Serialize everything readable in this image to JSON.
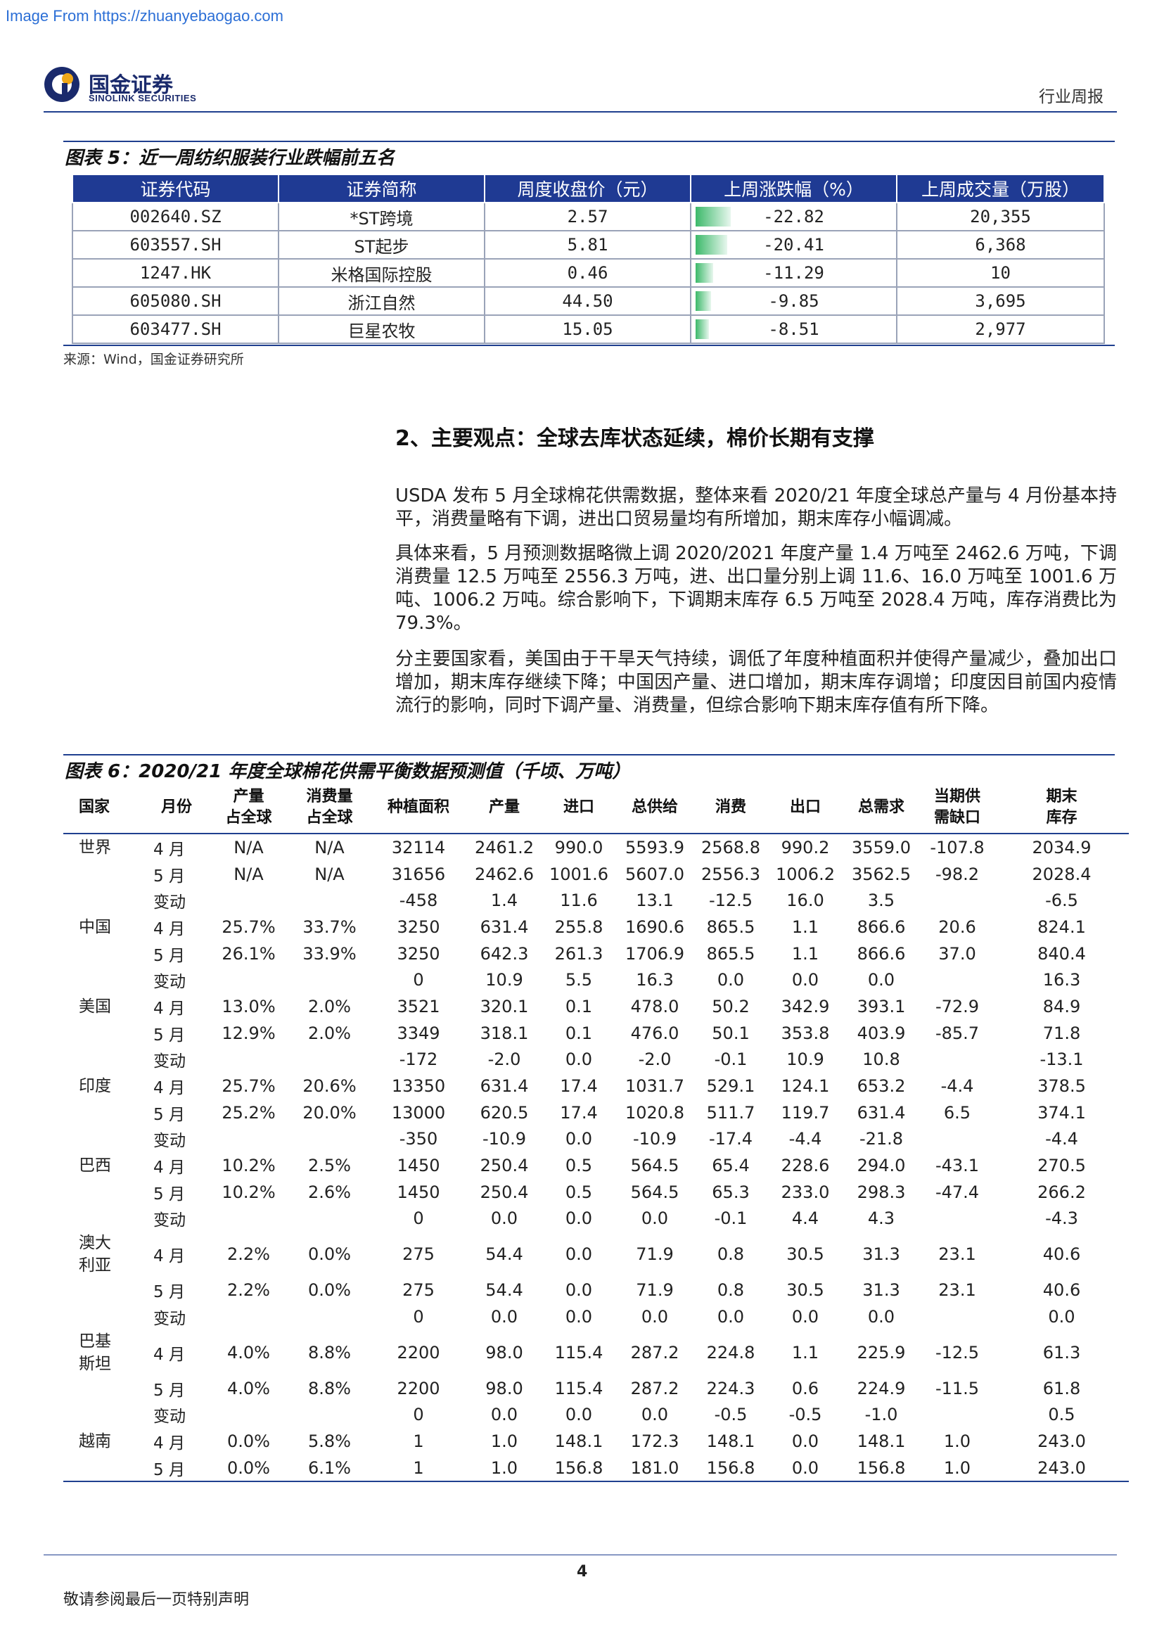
{
  "watermark": "Image From https://zhuanyebaogao.com",
  "logo": {
    "cn": "国金证券",
    "en": "SINOLINK SECURITIES"
  },
  "header_label": "行业周报",
  "figure5": {
    "title": "图表 5：近一周纺织服装行业跌幅前五名",
    "columns": [
      "证券代码",
      "证券简称",
      "周度收盘价（元）",
      "上周涨跌幅（%）",
      "上周成交量（万股）"
    ],
    "rows": [
      {
        "code": "002640.SZ",
        "name": "*ST跨境",
        "close": "2.57",
        "change": "-22.82",
        "change_value": -22.82,
        "volume": "20,355"
      },
      {
        "code": "603557.SH",
        "name": "ST起步",
        "close": "5.81",
        "change": "-20.41",
        "change_value": -20.41,
        "volume": "6,368"
      },
      {
        "code": "1247.HK",
        "name": "米格国际控股",
        "close": "0.46",
        "change": "-11.29",
        "change_value": -11.29,
        "volume": "10"
      },
      {
        "code": "605080.SH",
        "name": "浙江自然",
        "close": "44.50",
        "change": "-9.85",
        "change_value": -9.85,
        "volume": "3,695"
      },
      {
        "code": "603477.SH",
        "name": "巨星农牧",
        "close": "15.05",
        "change": "-8.51",
        "change_value": -8.51,
        "volume": "2,977"
      }
    ],
    "source": "来源：Wind，国金证券研究所"
  },
  "section2": {
    "heading": "2、主要观点：全球去库状态延续，棉价长期有支撑",
    "paragraphs": [
      "USDA 发布 5 月全球棉花供需数据，整体来看 2020/21 年度全球总产量与 4 月份基本持平，消费量略有下调，进出口贸易量均有所增加，期末库存小幅调减。",
      "具体来看，5 月预测数据略微上调 2020/2021 年度产量 1.4 万吨至 2462.6 万吨，下调消费量 12.5 万吨至 2556.3 万吨，进、出口量分别上调 11.6、16.0 万吨至 1001.6 万吨、1006.2 万吨。综合影响下，下调期末库存 6.5 万吨至 2028.4 万吨，库存消费比为 79.3%。",
      "分主要国家看，美国由于干旱天气持续，调低了年度种植面积并使得产量减少，叠加出口增加，期末库存继续下降；中国因产量、进口增加，期末库存调增；印度因目前国内疫情流行的影响，同时下调产量、消费量，但综合影响下期末库存值有所下降。"
    ]
  },
  "figure6": {
    "title": "图表 6：2020/21 年度全球棉花供需平衡数据预测值（千顷、万吨）",
    "columns": [
      "国家",
      "月份",
      "产量\n占全球",
      "消费量\n占全球",
      "种植面积",
      "产量",
      "进口",
      "总供给",
      "消费",
      "出口",
      "总需求",
      "当期供\n需缺口",
      "期末\n库存"
    ],
    "rows": [
      [
        "世界",
        "4 月",
        "N/A",
        "N/A",
        "32114",
        "2461.2",
        "990.0",
        "5593.9",
        "2568.8",
        "990.2",
        "3559.0",
        "-107.8",
        "2034.9"
      ],
      [
        "",
        "5 月",
        "N/A",
        "N/A",
        "31656",
        "2462.6",
        "1001.6",
        "5607.0",
        "2556.3",
        "1006.2",
        "3562.5",
        "-98.2",
        "2028.4"
      ],
      [
        "",
        "变动",
        "",
        "",
        "-458",
        "1.4",
        "11.6",
        "13.1",
        "-12.5",
        "16.0",
        "3.5",
        "",
        "-6.5"
      ],
      [
        "中国",
        "4 月",
        "25.7%",
        "33.7%",
        "3250",
        "631.4",
        "255.8",
        "1690.6",
        "865.5",
        "1.1",
        "866.6",
        "20.6",
        "824.1"
      ],
      [
        "",
        "5 月",
        "26.1%",
        "33.9%",
        "3250",
        "642.3",
        "261.3",
        "1706.9",
        "865.5",
        "1.1",
        "866.6",
        "37.0",
        "840.4"
      ],
      [
        "",
        "变动",
        "",
        "",
        "0",
        "10.9",
        "5.5",
        "16.3",
        "0.0",
        "0.0",
        "0.0",
        "",
        "16.3"
      ],
      [
        "美国",
        "4 月",
        "13.0%",
        "2.0%",
        "3521",
        "320.1",
        "0.1",
        "478.0",
        "50.2",
        "342.9",
        "393.1",
        "-72.9",
        "84.9"
      ],
      [
        "",
        "5 月",
        "12.9%",
        "2.0%",
        "3349",
        "318.1",
        "0.1",
        "476.0",
        "50.1",
        "353.8",
        "403.9",
        "-85.7",
        "71.8"
      ],
      [
        "",
        "变动",
        "",
        "",
        "-172",
        "-2.0",
        "0.0",
        "-2.0",
        "-0.1",
        "10.9",
        "10.8",
        "",
        "-13.1"
      ],
      [
        "印度",
        "4 月",
        "25.7%",
        "20.6%",
        "13350",
        "631.4",
        "17.4",
        "1031.7",
        "529.1",
        "124.1",
        "653.2",
        "-4.4",
        "378.5"
      ],
      [
        "",
        "5 月",
        "25.2%",
        "20.0%",
        "13000",
        "620.5",
        "17.4",
        "1020.8",
        "511.7",
        "119.7",
        "631.4",
        "6.5",
        "374.1"
      ],
      [
        "",
        "变动",
        "",
        "",
        "-350",
        "-10.9",
        "0.0",
        "-10.9",
        "-17.4",
        "-4.4",
        "-21.8",
        "",
        "-4.4"
      ],
      [
        "巴西",
        "4 月",
        "10.2%",
        "2.5%",
        "1450",
        "250.4",
        "0.5",
        "564.5",
        "65.4",
        "228.6",
        "294.0",
        "-43.1",
        "270.5"
      ],
      [
        "",
        "5 月",
        "10.2%",
        "2.6%",
        "1450",
        "250.4",
        "0.5",
        "564.5",
        "65.3",
        "233.0",
        "298.3",
        "-47.4",
        "266.2"
      ],
      [
        "",
        "变动",
        "",
        "",
        "0",
        "0.0",
        "0.0",
        "0.0",
        "-0.1",
        "4.4",
        "4.3",
        "",
        "-4.3"
      ],
      [
        "澳大\n利亚",
        "4 月",
        "2.2%",
        "0.0%",
        "275",
        "54.4",
        "0.0",
        "71.9",
        "0.8",
        "30.5",
        "31.3",
        "23.1",
        "40.6"
      ],
      [
        "",
        "5 月",
        "2.2%",
        "0.0%",
        "275",
        "54.4",
        "0.0",
        "71.9",
        "0.8",
        "30.5",
        "31.3",
        "23.1",
        "40.6"
      ],
      [
        "",
        "变动",
        "",
        "",
        "0",
        "0.0",
        "0.0",
        "0.0",
        "0.0",
        "0.0",
        "0.0",
        "",
        "0.0"
      ],
      [
        "巴基\n斯坦",
        "4 月",
        "4.0%",
        "8.8%",
        "2200",
        "98.0",
        "115.4",
        "287.2",
        "224.8",
        "1.1",
        "225.9",
        "-12.5",
        "61.3"
      ],
      [
        "",
        "5 月",
        "4.0%",
        "8.8%",
        "2200",
        "98.0",
        "115.4",
        "287.2",
        "224.3",
        "0.6",
        "224.9",
        "-11.5",
        "61.8"
      ],
      [
        "",
        "变动",
        "",
        "",
        "0",
        "0.0",
        "0.0",
        "0.0",
        "-0.5",
        "-0.5",
        "-1.0",
        "",
        "0.5"
      ],
      [
        "越南",
        "4 月",
        "0.0%",
        "5.8%",
        "1",
        "1.0",
        "148.1",
        "172.3",
        "148.1",
        "0.0",
        "148.1",
        "1.0",
        "243.0"
      ],
      [
        "",
        "5 月",
        "0.0%",
        "6.1%",
        "1",
        "1.0",
        "156.8",
        "181.0",
        "156.8",
        "0.0",
        "156.8",
        "1.0",
        "243.0"
      ]
    ]
  },
  "page_number": "4",
  "footer_note": "敬请参阅最后一页特别声明"
}
